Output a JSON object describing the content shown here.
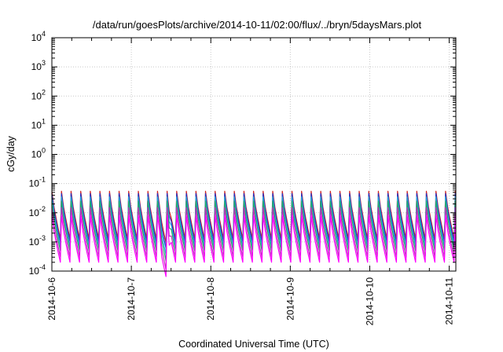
{
  "chart_data": {
    "type": "line",
    "title": "/data/run/goesPlots/archive/2014-10-11/02:00/flux/../bryn/5daysMars.plot",
    "xlabel": "Coordinated Universal Time (UTC)",
    "ylabel": "cGy/day",
    "xlim": [
      "2014-10-06T00:00",
      "2014-10-11T02:00"
    ],
    "ylim": [
      0.0001,
      10000
    ],
    "yscale": "log",
    "grid": true,
    "legend": "none",
    "x_ticks": [
      "2014-10-6",
      "2014-10-7",
      "2014-10-8",
      "2014-10-9",
      "2014-10-10",
      "2014-10-11"
    ],
    "y_ticks": [
      {
        "base": "10",
        "exp": "-4"
      },
      {
        "base": "10",
        "exp": "-3"
      },
      {
        "base": "10",
        "exp": "-2"
      },
      {
        "base": "10",
        "exp": "-1"
      },
      {
        "base": "10",
        "exp": "0"
      },
      {
        "base": "10",
        "exp": "1"
      },
      {
        "base": "10",
        "exp": "2"
      },
      {
        "base": "10",
        "exp": "3"
      },
      {
        "base": "10",
        "exp": "4"
      }
    ],
    "pattern": {
      "description": "sawtooth: rapid rise then slow decay, repeating every ~2.9 hours",
      "period_hours": 2.9,
      "data_gap": [
        "2014-10-07T11:30",
        "2014-10-07T12:00"
      ]
    },
    "series": [
      {
        "color": "#cc2222",
        "peak": 0.055,
        "trough": 0.0013
      },
      {
        "color": "#2233cc",
        "peak": 0.045,
        "trough": 0.001
      },
      {
        "color": "#22aadd",
        "peak": 0.035,
        "trough": 0.0007
      },
      {
        "color": "#22aa66",
        "peak": 0.025,
        "trough": 0.0005
      },
      {
        "color": "#bb33bb",
        "peak": 0.015,
        "trough": 0.0003
      },
      {
        "color": "#ff00ff",
        "peak": 0.008,
        "trough": 0.0002
      }
    ]
  }
}
